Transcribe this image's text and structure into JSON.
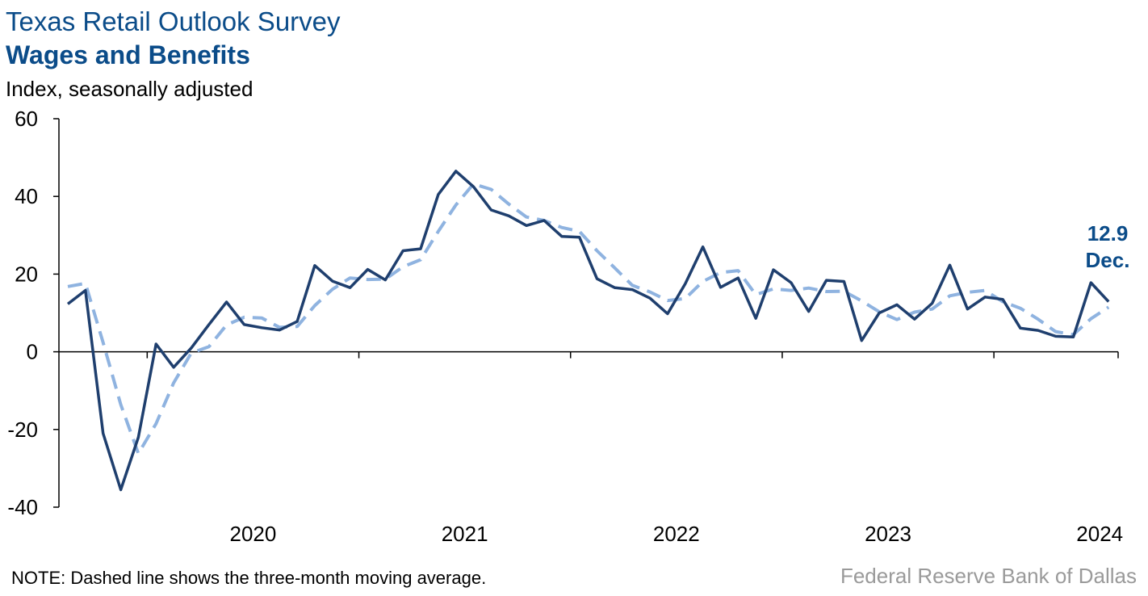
{
  "header": {
    "title": "Texas Retail Outlook Survey",
    "subtitle": "Wages and Benefits",
    "unit_label": "Index, seasonally adjusted"
  },
  "footer": {
    "note": "NOTE: Dashed line shows the three-month moving average.",
    "source": "Federal Reserve Bank of Dallas"
  },
  "annotation": {
    "value": "12.9",
    "period": "Dec."
  },
  "colors": {
    "series": "#1f3f6e",
    "moving_average": "#8fb3e0",
    "title": "#0b4c89",
    "source": "#9a9a9a"
  },
  "chart_data": {
    "type": "line",
    "title": "Wages and Benefits",
    "ylabel": "Index, seasonally adjusted",
    "ylim": [
      -40,
      60
    ],
    "yticks": [
      -40,
      -20,
      0,
      20,
      40,
      60
    ],
    "x_start": "2019-08",
    "year_labels": [
      "2020",
      "2021",
      "2022",
      "2023",
      "2024"
    ],
    "grid": false,
    "series": [
      {
        "values": [
          12.3,
          15.8,
          -21,
          -35.5,
          -22,
          2,
          -4,
          1,
          7,
          12.8,
          7,
          6.2,
          5.6,
          7.8,
          22.2,
          18.2,
          16.5,
          21.2,
          18.5,
          26,
          26.5,
          40.5,
          46.5,
          42.5,
          36.5,
          35,
          32.5,
          33.8,
          29.7,
          29.5,
          18.8,
          16.5,
          16,
          13.8,
          9.8,
          17.5,
          27,
          16.6,
          19,
          8.6,
          21.1,
          17.8,
          10.4,
          18.4,
          18.1,
          2.9,
          10,
          12.1,
          8.4,
          12.5,
          22.3,
          11,
          14.1,
          13.5,
          6.1,
          5.5,
          4,
          3.8,
          17.8,
          12.9
        ]
      },
      {
        "values": [
          16.8,
          17.6,
          2.4,
          -13.6,
          -26.2,
          -18.5,
          -8,
          -0.3,
          1.3,
          6.9,
          8.9,
          8.7,
          6.3,
          6.5,
          11.9,
          16.1,
          19,
          18.6,
          18.7,
          21.9,
          23.7,
          31,
          37.8,
          43.2,
          41.8,
          38,
          34.7,
          33.8,
          32,
          31,
          26,
          21.6,
          17.1,
          15.4,
          13.2,
          13.7,
          18.1,
          20.4,
          20.9,
          14.7,
          16.2,
          15.8,
          16.4,
          15.5,
          15.6,
          13.1,
          10.3,
          8.3,
          10.2,
          11,
          14.4,
          15.3,
          15.8,
          12.9,
          11.2,
          8.4,
          5.2,
          4.4,
          8.5,
          11.5
        ]
      }
    ]
  }
}
